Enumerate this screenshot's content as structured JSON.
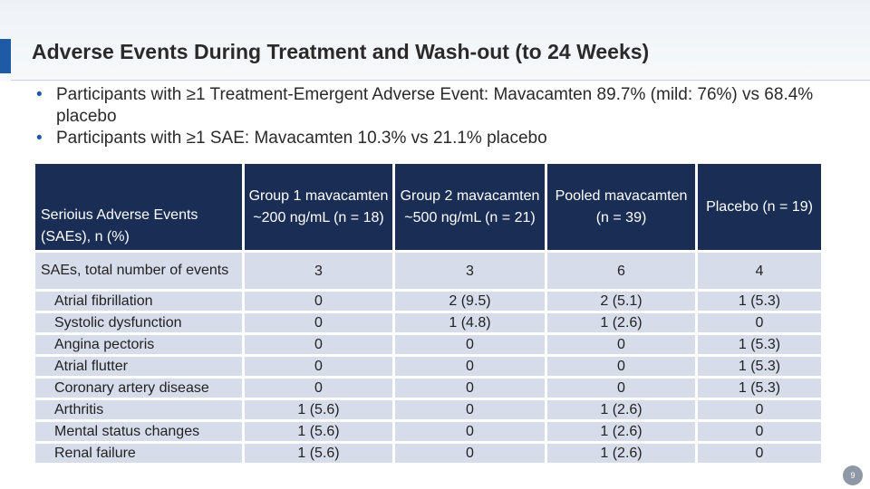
{
  "title": "Adverse Events During Treatment and Wash-out (to 24 Weeks)",
  "bullets": [
    "Participants with ≥1 Treatment-Emergent Adverse Event: Mavacamten 89.7% (mild: 76%) vs 68.4% placebo",
    "Participants with ≥1 SAE: Mavacamten 10.3% vs 21.1% placebo"
  ],
  "table": {
    "header": {
      "col0": "Serioius Adverse Events (SAEs), n (%)",
      "col1": "Group 1 mavacamten ~200 ng/mL (n = 18)",
      "col2": "Group 2 mavacamten ~500 ng/mL (n = 21)",
      "col3": "Pooled mavacamten (n = 39)",
      "col4": "Placebo (n = 19)"
    },
    "total_row": {
      "label": "SAEs, total number of events",
      "values": [
        "3",
        "3",
        "6",
        "4"
      ]
    },
    "rows": [
      {
        "label": "Atrial fibrillation",
        "values": [
          "0",
          "2 (9.5)",
          "2 (5.1)",
          "1 (5.3)"
        ]
      },
      {
        "label": "Systolic dysfunction",
        "values": [
          "0",
          "1 (4.8)",
          "1 (2.6)",
          "0"
        ]
      },
      {
        "label": "Angina pectoris",
        "values": [
          "0",
          "0",
          "0",
          "1 (5.3)"
        ]
      },
      {
        "label": "Atrial flutter",
        "values": [
          "0",
          "0",
          "0",
          "1 (5.3)"
        ]
      },
      {
        "label": "Coronary artery disease",
        "values": [
          "0",
          "0",
          "0",
          "1 (5.3)"
        ]
      },
      {
        "label": "Arthritis",
        "values": [
          "1 (5.6)",
          "0",
          "1 (2.6)",
          "0"
        ]
      },
      {
        "label": "Mental status changes",
        "values": [
          "1 (5.6)",
          "0",
          "1 (2.6)",
          "0"
        ]
      },
      {
        "label": "Renal failure",
        "values": [
          "1 (5.6)",
          "0",
          "1 (2.6)",
          "0"
        ]
      }
    ]
  },
  "page_number": "9",
  "colors": {
    "header_bg": "#1a2e55",
    "row_bg": "#d6dcea",
    "accent": "#1f5aa6"
  }
}
